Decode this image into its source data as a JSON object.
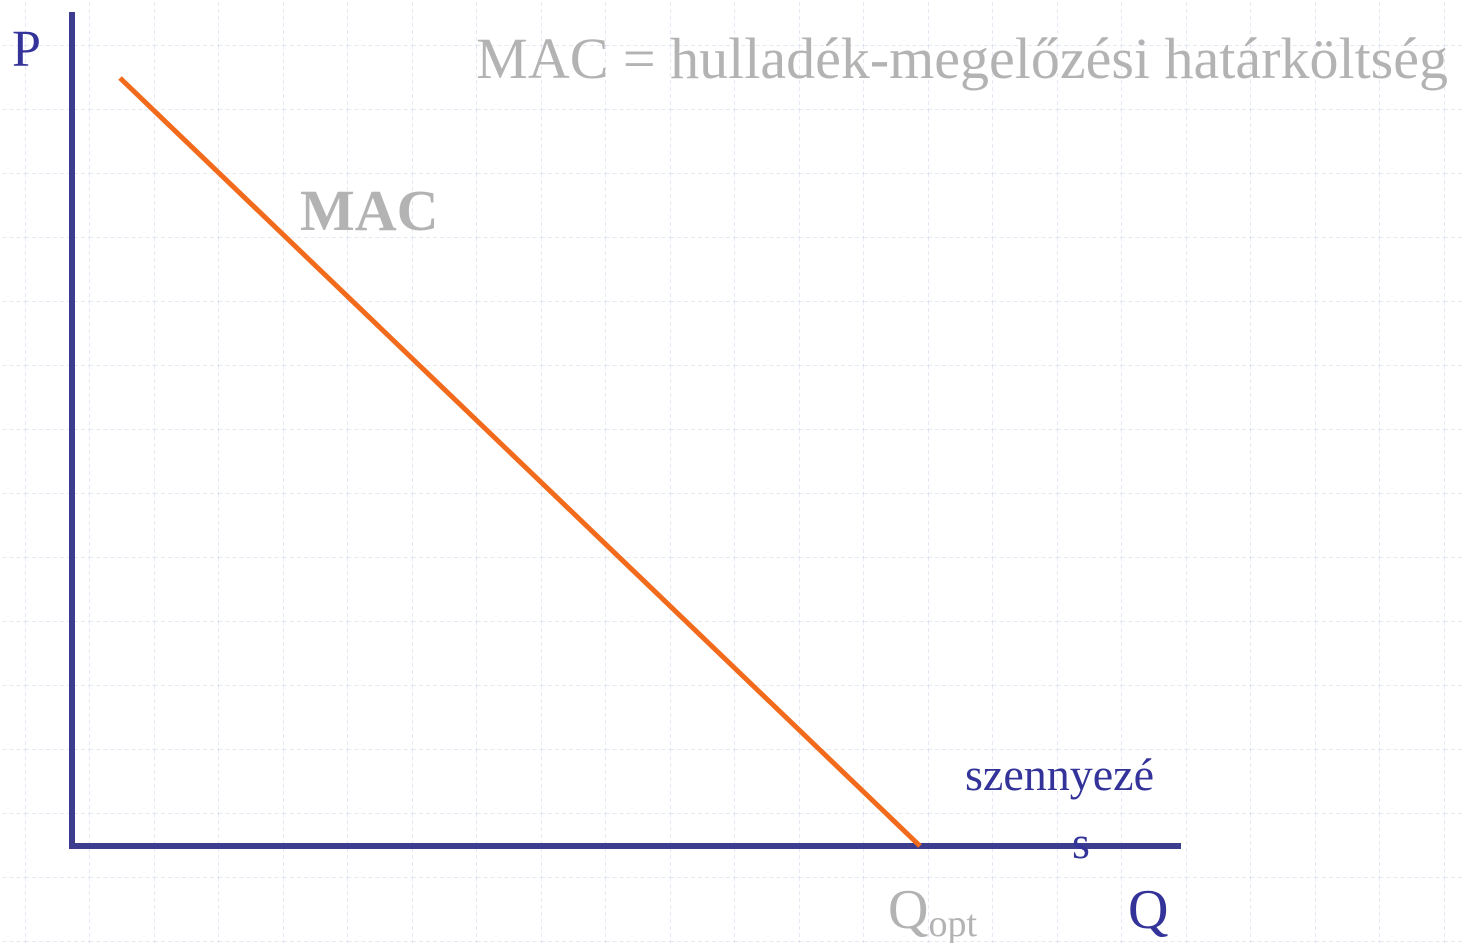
{
  "title": "MAC = hulladék-megelőzési határköltség",
  "axes": {
    "y_label": "P",
    "x_label": "Q"
  },
  "curve": {
    "label": "MAC"
  },
  "x_axis_note": {
    "lines": [
      "szennyezé",
      "s"
    ]
  },
  "marker": {
    "label": "Q",
    "subscript": "opt"
  }
}
